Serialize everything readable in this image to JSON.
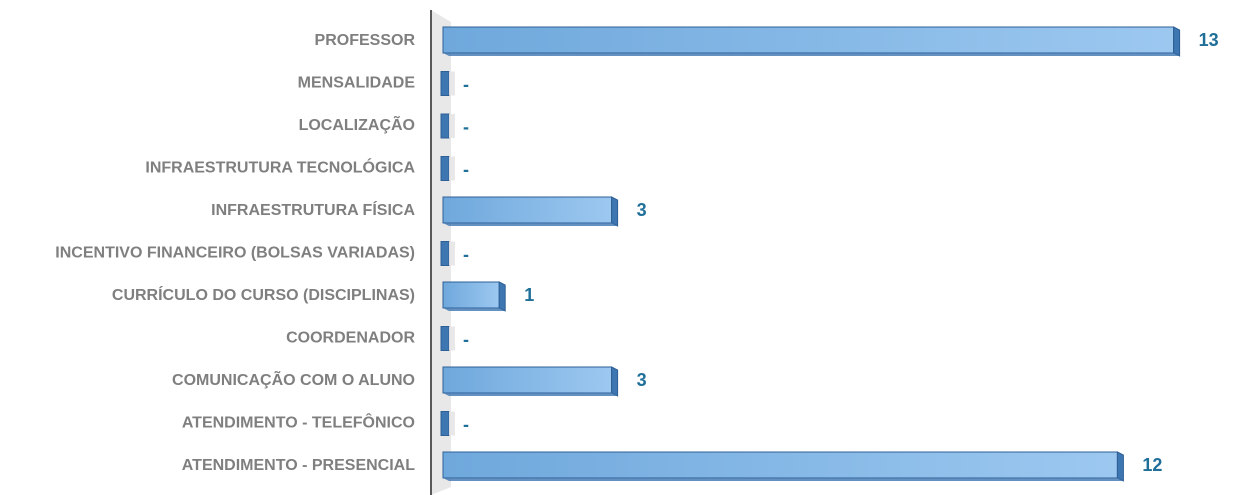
{
  "chart_data": {
    "type": "bar",
    "orientation": "horizontal",
    "categories": [
      "PROFESSOR",
      "MENSALIDADE",
      "LOCALIZAÇÃO",
      "INFRAESTRUTURA TECNOLÓGICA",
      "INFRAESTRUTURA FÍSICA",
      "INCENTIVO FINANCEIRO (BOLSAS VARIADAS)",
      "CURRÍCULO DO CURSO (DISCIPLINAS)",
      "COORDENADOR",
      "COMUNICAÇÃO COM O ALUNO",
      "ATENDIMENTO - TELEFÔNICO",
      "ATENDIMENTO - PRESENCIAL"
    ],
    "values": [
      13,
      0,
      0,
      0,
      3,
      0,
      1,
      0,
      3,
      0,
      12
    ],
    "data_labels": [
      "13",
      "-",
      "-",
      "-",
      "3",
      "-",
      "1",
      "-",
      "3",
      "-",
      "12"
    ],
    "title": "",
    "xlabel": "",
    "ylabel": "",
    "xlim": [
      0,
      13
    ],
    "grid": false,
    "legend": "none",
    "colors": {
      "bar_front": "#6fa8dc",
      "bar_light": "#9cc8f0",
      "bar_side": "#3d76b0",
      "bar_edge": "#2e5f96",
      "label_text": "#7f7f7f",
      "value_text": "#1f6f99",
      "axis_wall": "#d9d9d9",
      "axis_line": "#595959"
    }
  }
}
